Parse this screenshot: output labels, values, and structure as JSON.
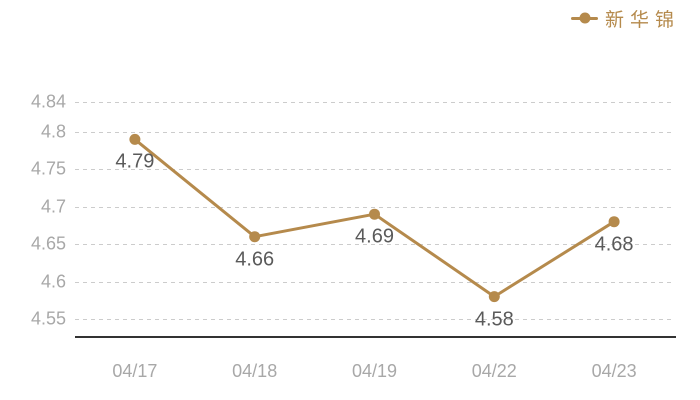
{
  "legend": {
    "series_label": "新华锦",
    "position": "top-right"
  },
  "chart_data": {
    "type": "line",
    "title": "",
    "xlabel": "",
    "ylabel": "",
    "categories": [
      "04/17",
      "04/18",
      "04/19",
      "04/22",
      "04/23"
    ],
    "series": [
      {
        "name": "新华锦",
        "values": [
          4.79,
          4.66,
          4.69,
          4.58,
          4.68
        ]
      }
    ],
    "data_labels": [
      "4.79",
      "4.66",
      "4.69",
      "4.58",
      "4.68"
    ],
    "y_ticks": [
      4.84,
      4.8,
      4.75,
      4.7,
      4.65,
      4.6,
      4.55
    ],
    "ylim": [
      4.55,
      4.84
    ],
    "grid": "horizontal-dashed",
    "legend_position": "top-right",
    "marker": "filled-circle",
    "colors": {
      "series": "#b58a4c",
      "data_label": "#5a5a5a",
      "axis_label": "#a8a8a8",
      "grid_line": "#cccccc",
      "axis_line": "#333333",
      "background": "#ffffff"
    }
  }
}
